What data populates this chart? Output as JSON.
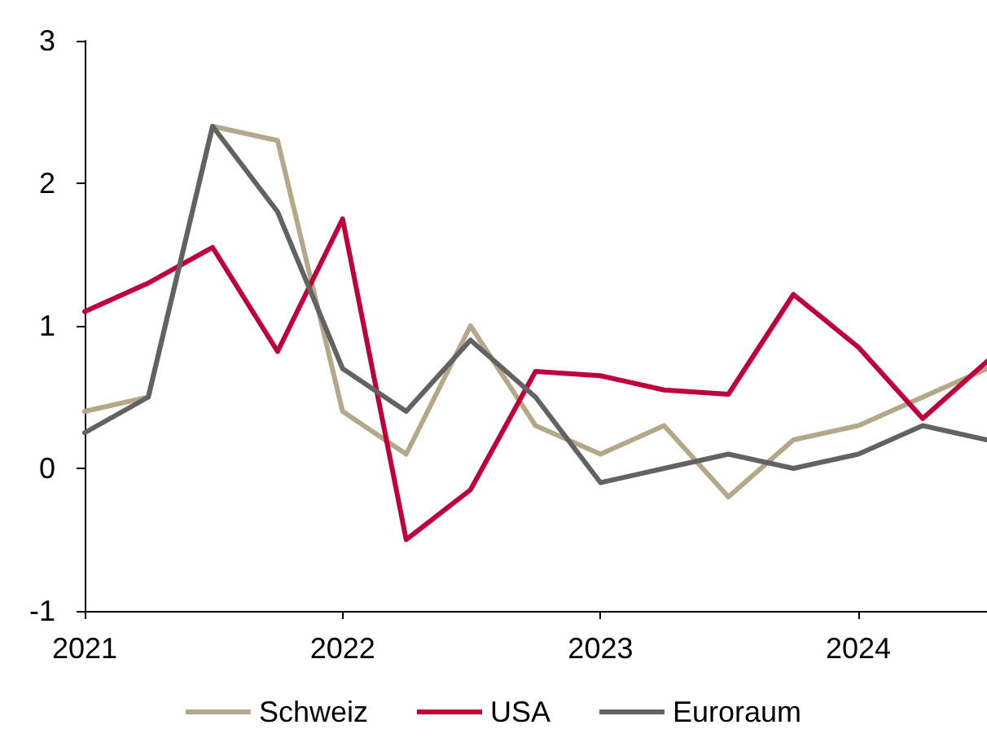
{
  "chart_data": {
    "type": "line",
    "x": [
      "2021-01",
      "2021-04",
      "2021-07",
      "2021-10",
      "2022-01",
      "2022-04",
      "2022-07",
      "2022-10",
      "2023-01",
      "2023-04",
      "2023-07",
      "2023-10",
      "2024-01",
      "2024-04",
      "2024-07"
    ],
    "series": [
      {
        "name": "Schweiz",
        "color": "#b5a88a",
        "values": [
          0.4,
          0.5,
          2.4,
          2.3,
          0.4,
          0.1,
          1.0,
          0.3,
          0.1,
          0.3,
          -0.2,
          0.2,
          0.3,
          0.5,
          0.7
        ]
      },
      {
        "name": "USA",
        "color": "#c0003c",
        "values": [
          1.1,
          1.3,
          1.55,
          0.82,
          1.75,
          -0.5,
          -0.15,
          0.68,
          0.65,
          0.55,
          0.52,
          1.22,
          0.85,
          0.35,
          0.75
        ]
      },
      {
        "name": "Euroraum",
        "color": "#626262",
        "values": [
          0.25,
          0.5,
          2.4,
          1.8,
          0.7,
          0.4,
          0.9,
          0.5,
          -0.1,
          0.0,
          0.1,
          0.0,
          0.1,
          0.3,
          0.2
        ]
      }
    ],
    "xlim": [
      "2021-01",
      "2024-07"
    ],
    "xticks": [
      "2021",
      "2022",
      "2023",
      "2024"
    ],
    "ylim": [
      -1,
      3
    ],
    "yticks": [
      -1,
      0,
      1,
      2,
      3
    ],
    "grid": false,
    "legend": "bottom",
    "marker": "none",
    "line_style": "solid"
  }
}
